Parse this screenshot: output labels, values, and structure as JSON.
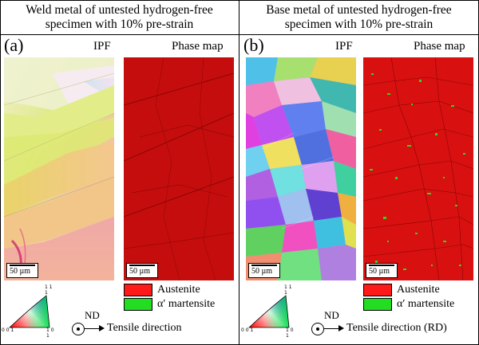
{
  "panels": {
    "left": {
      "letter": "(a)",
      "title_line1": "Weld metal of untested hydrogen-free",
      "title_line2": "specimen with 10% pre-strain",
      "ipf_label": "IPF",
      "phase_label": "Phase map",
      "scale_ipf": "50 µm",
      "scale_phase": "50 µm",
      "legend_austenite": "Austenite",
      "legend_martensite": "α′ martensite",
      "nd_label": "ND",
      "direction_label": "Tensile direction"
    },
    "right": {
      "letter": "(b)",
      "title_line1": "Base metal of untested hydrogen-free",
      "title_line2": "specimen with 10% pre-strain",
      "ipf_label": "IPF",
      "phase_label": "Phase map",
      "scale_ipf": "50 µm",
      "scale_phase": "50 µm",
      "legend_austenite": "Austenite",
      "legend_martensite": "α′ martensite",
      "nd_label": "ND",
      "direction_label": "Tensile direction (RD)"
    }
  },
  "triangle_labels": {
    "top": "1 1 1",
    "left": "0 0 1",
    "right": "1 0 1"
  },
  "colors": {
    "austenite": "#ff1a1a",
    "martensite": "#22dd22",
    "phase_bg": "#c40c0c"
  }
}
